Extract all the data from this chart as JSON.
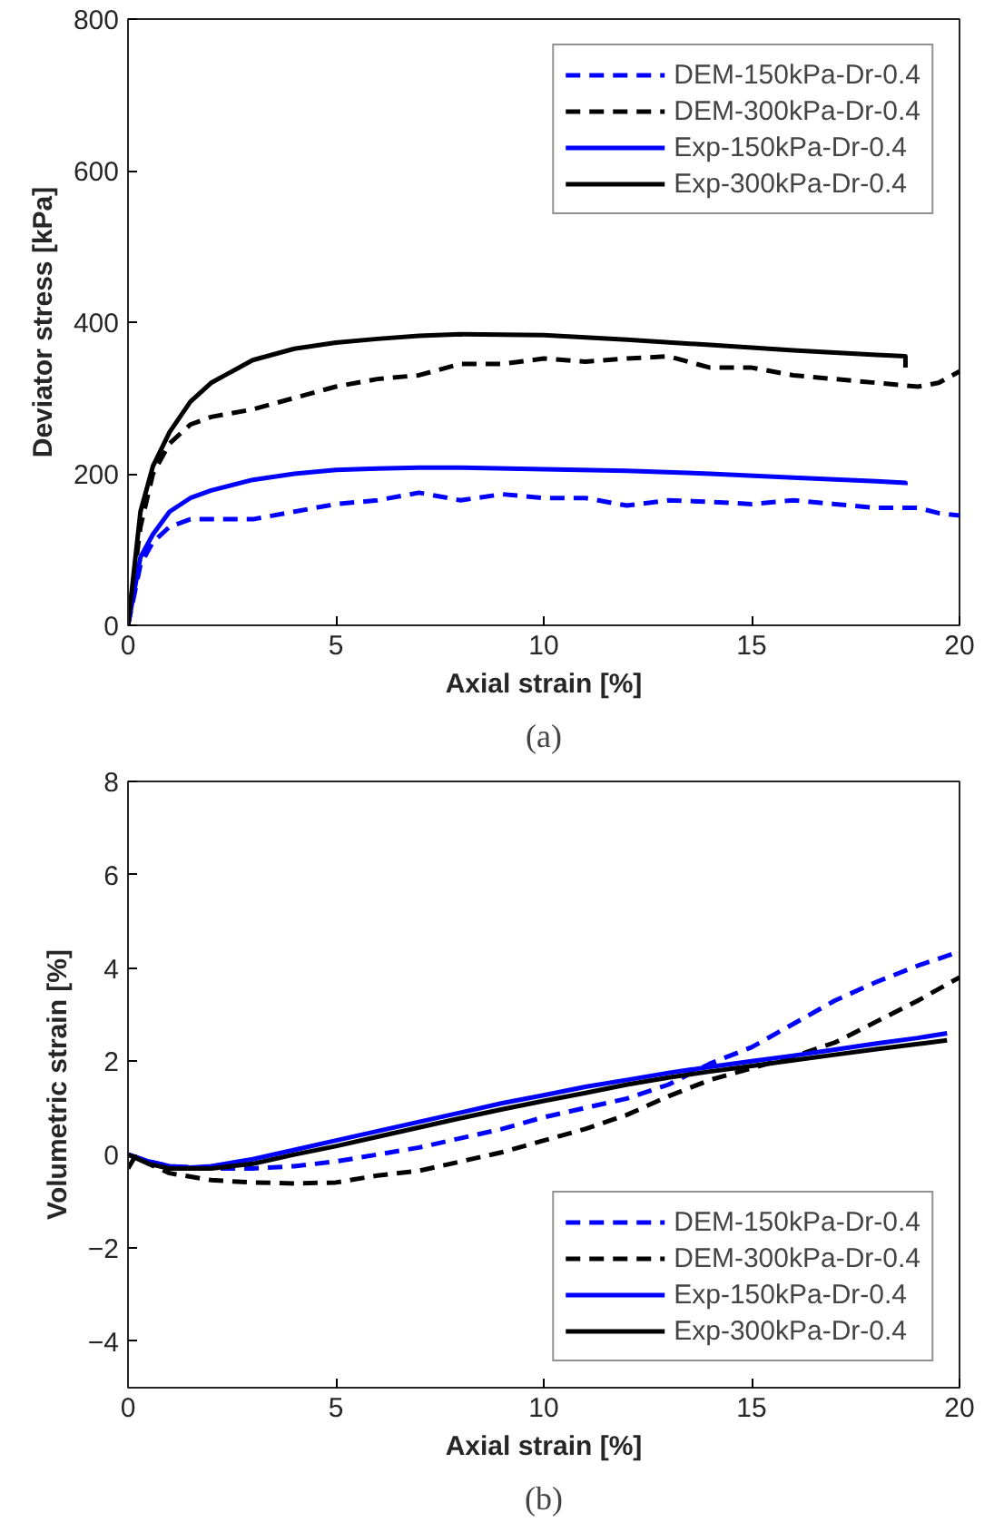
{
  "chart_data": [
    {
      "type": "line",
      "xlabel": "Axial strain [%]",
      "ylabel": "Deviator stress [kPa]",
      "annotations": [
        "(a)"
      ],
      "xlim": [
        0,
        20
      ],
      "xticks": [
        0,
        5,
        10,
        15,
        20
      ],
      "ylim": [
        0,
        800
      ],
      "yticks": [
        0,
        200,
        400,
        600,
        800
      ],
      "legend": "top right",
      "series": [
        {
          "name": "DEM-150kPa-Dr-0.4",
          "color": "#0000ff",
          "line_style": "dashed",
          "x": [
            0,
            0.3,
            0.6,
            1,
            1.5,
            2,
            3,
            4,
            5,
            6,
            7,
            8,
            9,
            10,
            11,
            12,
            13,
            14,
            15,
            16,
            17,
            18,
            19,
            19.5,
            20
          ],
          "values": [
            0,
            80,
            110,
            130,
            140,
            140,
            140,
            150,
            160,
            165,
            175,
            165,
            173,
            168,
            168,
            158,
            165,
            163,
            160,
            165,
            160,
            155,
            155,
            148,
            145
          ]
        },
        {
          "name": "DEM-300kPa-Dr-0.4",
          "color": "#000000",
          "line_style": "dashed",
          "x": [
            0,
            0.3,
            0.6,
            1,
            1.5,
            2,
            3,
            4,
            5,
            6,
            7,
            8,
            9,
            10,
            11,
            12,
            13,
            14,
            15,
            16,
            17,
            18,
            19,
            19.5,
            20
          ],
          "values": [
            0,
            130,
            200,
            240,
            265,
            275,
            285,
            300,
            315,
            325,
            330,
            345,
            345,
            352,
            348,
            352,
            355,
            340,
            340,
            330,
            325,
            320,
            315,
            320,
            335
          ]
        },
        {
          "name": "Exp-150kPa-Dr-0.4",
          "color": "#0000ff",
          "line_style": "solid",
          "x": [
            0,
            0.3,
            0.6,
            1,
            1.5,
            2,
            3,
            4,
            5,
            6,
            7,
            8,
            10,
            12,
            14,
            16,
            18,
            18.7,
            18.7
          ],
          "values": [
            0,
            90,
            120,
            150,
            168,
            178,
            192,
            200,
            205,
            207,
            208,
            208,
            206,
            204,
            200,
            195,
            190,
            188,
            185
          ]
        },
        {
          "name": "Exp-300kPa-Dr-0.4",
          "color": "#000000",
          "line_style": "solid",
          "x": [
            0,
            0.3,
            0.6,
            1,
            1.5,
            2,
            3,
            4,
            5,
            6,
            7,
            8,
            10,
            12,
            14,
            16,
            18,
            18.7,
            18.7
          ],
          "values": [
            0,
            150,
            210,
            255,
            295,
            320,
            350,
            365,
            373,
            378,
            382,
            384,
            383,
            377,
            370,
            363,
            357,
            355,
            340
          ]
        }
      ]
    },
    {
      "type": "line",
      "xlabel": "Axial strain [%]",
      "ylabel": "Volumetric strain [%]",
      "annotations": [
        "(b)"
      ],
      "xlim": [
        0,
        20
      ],
      "xticks": [
        0,
        5,
        10,
        15,
        20
      ],
      "ylim": [
        -5,
        8
      ],
      "yticks": [
        -4,
        -2,
        0,
        2,
        4,
        6,
        8
      ],
      "legend": "bottom right",
      "series": [
        {
          "name": "DEM-150kPa-Dr-0.4",
          "color": "#0000ff",
          "line_style": "dashed",
          "x": [
            0,
            0.5,
            1,
            2,
            3,
            4,
            5,
            6,
            7,
            8,
            9,
            10,
            11,
            12,
            13,
            14,
            15,
            16,
            17,
            18,
            19,
            20
          ],
          "values": [
            0,
            -0.15,
            -0.25,
            -0.3,
            -0.3,
            -0.25,
            -0.15,
            0,
            0.15,
            0.35,
            0.55,
            0.8,
            1.0,
            1.2,
            1.5,
            1.95,
            2.3,
            2.8,
            3.3,
            3.7,
            4.05,
            4.35
          ]
        },
        {
          "name": "DEM-300kPa-Dr-0.4",
          "color": "#000000",
          "line_style": "dashed",
          "x": [
            0,
            0.2,
            0.5,
            1,
            2,
            3,
            4,
            5,
            6,
            7,
            8,
            9,
            10,
            11,
            12,
            13,
            14,
            15,
            16,
            17,
            18,
            19,
            20
          ],
          "values": [
            -0.3,
            0,
            -0.2,
            -0.4,
            -0.55,
            -0.6,
            -0.62,
            -0.6,
            -0.45,
            -0.35,
            -0.15,
            0.05,
            0.3,
            0.55,
            0.85,
            1.25,
            1.6,
            1.85,
            2.1,
            2.4,
            2.85,
            3.3,
            3.8
          ]
        },
        {
          "name": "Exp-150kPa-Dr-0.4",
          "color": "#0000ff",
          "line_style": "solid",
          "x": [
            0,
            0.5,
            1,
            1.5,
            2,
            3,
            4,
            5,
            6,
            7,
            8,
            9,
            10,
            11,
            12,
            13,
            14,
            15,
            16,
            17,
            18,
            19,
            19.7
          ],
          "values": [
            0,
            -0.15,
            -0.25,
            -0.28,
            -0.25,
            -0.1,
            0.1,
            0.3,
            0.5,
            0.7,
            0.9,
            1.1,
            1.27,
            1.45,
            1.6,
            1.75,
            1.88,
            2.0,
            2.12,
            2.25,
            2.38,
            2.5,
            2.6
          ]
        },
        {
          "name": "Exp-300kPa-Dr-0.4",
          "color": "#000000",
          "line_style": "solid",
          "x": [
            0,
            0.5,
            1,
            2,
            3,
            4,
            5,
            6,
            7,
            8,
            9,
            10,
            11,
            12,
            13,
            14,
            15,
            16,
            17,
            18,
            19,
            19.7
          ],
          "values": [
            0,
            -0.2,
            -0.3,
            -0.3,
            -0.2,
            0,
            0.18,
            0.38,
            0.58,
            0.78,
            0.97,
            1.15,
            1.32,
            1.5,
            1.65,
            1.78,
            1.9,
            2.02,
            2.14,
            2.26,
            2.37,
            2.45
          ]
        }
      ]
    }
  ]
}
